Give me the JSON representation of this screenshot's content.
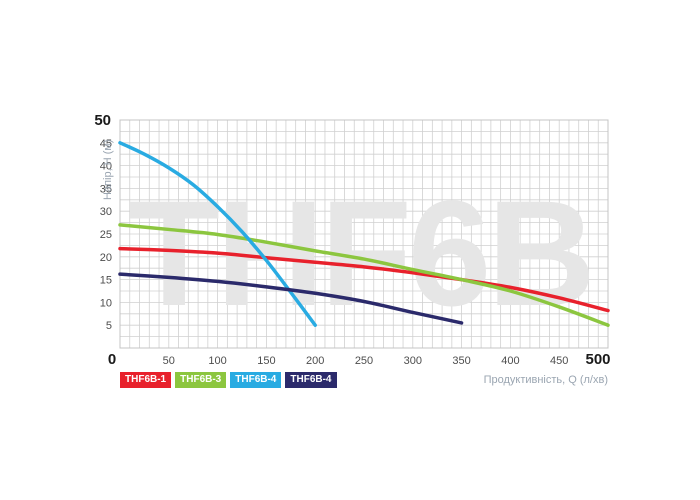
{
  "chart_data": {
    "type": "line",
    "watermark": "THF6B",
    "ylabel": "Напір, H (м)",
    "xlabel": "Продуктивність, Q (л/хв)",
    "xlim": [
      0,
      500
    ],
    "ylim": [
      0,
      50
    ],
    "x_ticks": [
      "0",
      "50",
      "100",
      "150",
      "200",
      "250",
      "300",
      "350",
      "400",
      "450",
      "500"
    ],
    "y_ticks": [
      "5",
      "10",
      "15",
      "20",
      "25",
      "30",
      "35",
      "40",
      "45",
      "50"
    ],
    "grid": true,
    "series": [
      {
        "name": "THF6B-1",
        "color": "#e8212c",
        "points": [
          [
            0,
            21.8
          ],
          [
            50,
            21.4
          ],
          [
            100,
            20.8
          ],
          [
            150,
            19.8
          ],
          [
            200,
            18.8
          ],
          [
            250,
            17.8
          ],
          [
            300,
            16.5
          ],
          [
            350,
            15
          ],
          [
            400,
            13.3
          ],
          [
            450,
            11
          ],
          [
            500,
            8.2
          ]
        ]
      },
      {
        "name": "THF6B-3",
        "color": "#8cc63f",
        "points": [
          [
            0,
            27
          ],
          [
            50,
            26
          ],
          [
            100,
            24.9
          ],
          [
            150,
            23.2
          ],
          [
            200,
            21.3
          ],
          [
            250,
            19.5
          ],
          [
            300,
            17.2
          ],
          [
            350,
            15
          ],
          [
            400,
            12.5
          ],
          [
            450,
            9
          ],
          [
            500,
            5
          ]
        ]
      },
      {
        "name": "THF6B-4",
        "color": "#29abe2",
        "points": [
          [
            0,
            45
          ],
          [
            25,
            42.5
          ],
          [
            50,
            39.5
          ],
          [
            75,
            35.8
          ],
          [
            100,
            31
          ],
          [
            125,
            25.5
          ],
          [
            150,
            19.2
          ],
          [
            175,
            12.2
          ],
          [
            200,
            5
          ]
        ]
      },
      {
        "name": "THF6B-4",
        "color": "#2b2a6b",
        "points": [
          [
            0,
            16.2
          ],
          [
            50,
            15.5
          ],
          [
            100,
            14.6
          ],
          [
            150,
            13.4
          ],
          [
            200,
            12
          ],
          [
            250,
            10.2
          ],
          [
            300,
            7.8
          ],
          [
            350,
            5.5
          ]
        ]
      }
    ]
  }
}
